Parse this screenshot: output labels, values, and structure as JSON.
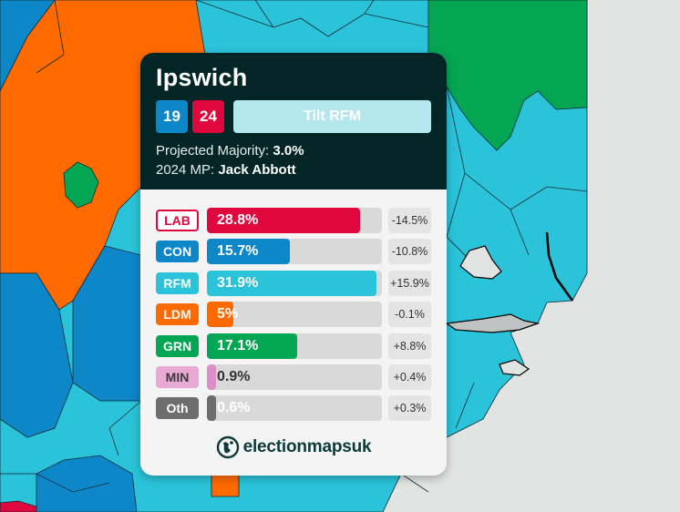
{
  "constituency": "Ipswich",
  "seats": {
    "con": "19",
    "lab": "24"
  },
  "tilt_label": "Tilt RFM",
  "projected_majority": {
    "label": "Projected Majority:",
    "value": "3.0%"
  },
  "mp": {
    "label": "2024 MP:",
    "value": "Jack Abbott"
  },
  "parties": [
    {
      "code": "LAB",
      "share": 28.8,
      "share_label": "28.8%",
      "change": "-14.5%",
      "color": "#e0073e",
      "badge_text_color": "#e0073e",
      "badge_bg": "#ffffff",
      "badge_border": "#e0073e",
      "label_color": "light"
    },
    {
      "code": "CON",
      "share": 15.7,
      "share_label": "15.7%",
      "change": "-10.8%",
      "color": "#0e87c9",
      "badge_text_color": "#ffffff",
      "badge_bg": "#0e87c9",
      "badge_border": "#0e87c9",
      "label_color": "light"
    },
    {
      "code": "RFM",
      "share": 31.9,
      "share_label": "31.9%",
      "change": "+15.9%",
      "color": "#2bc3d9",
      "badge_text_color": "#ffffff",
      "badge_bg": "#2bc3d9",
      "badge_border": "#2bc3d9",
      "label_color": "light"
    },
    {
      "code": "LDM",
      "share": 5,
      "share_label": "5%",
      "change": "-0.1%",
      "color": "#ff6a00",
      "badge_text_color": "#ffffff",
      "badge_bg": "#ff6a00",
      "badge_border": "#ff6a00",
      "label_color": "light"
    },
    {
      "code": "GRN",
      "share": 17.1,
      "share_label": "17.1%",
      "change": "+8.8%",
      "color": "#04a553",
      "badge_text_color": "#ffffff",
      "badge_bg": "#04a553",
      "badge_border": "#04a553",
      "label_color": "light"
    },
    {
      "code": "MIN",
      "share": 0.9,
      "share_label": "0.9%",
      "change": "+0.4%",
      "color": "#dc8fc6",
      "badge_text_color": "#3a3a3a",
      "badge_bg": "#e8a9d5",
      "badge_border": "#e8a9d5",
      "label_color": "dark"
    },
    {
      "code": "Oth",
      "share": 0.6,
      "share_label": "0.6%",
      "change": "+0.3%",
      "color": "#6d6d6d",
      "badge_text_color": "#ffffff",
      "badge_bg": "#6d6d6d",
      "badge_border": "#6d6d6d",
      "label_color": "light"
    }
  ],
  "bar_max_share": 33,
  "brand": "electionmapsuk",
  "map_colors": {
    "rfm": "#2bc3d9",
    "con": "#0e87c9",
    "ldm": "#ff6a00",
    "grn": "#04a553",
    "lab": "#e0073e",
    "sea": "#e2e4e3"
  }
}
